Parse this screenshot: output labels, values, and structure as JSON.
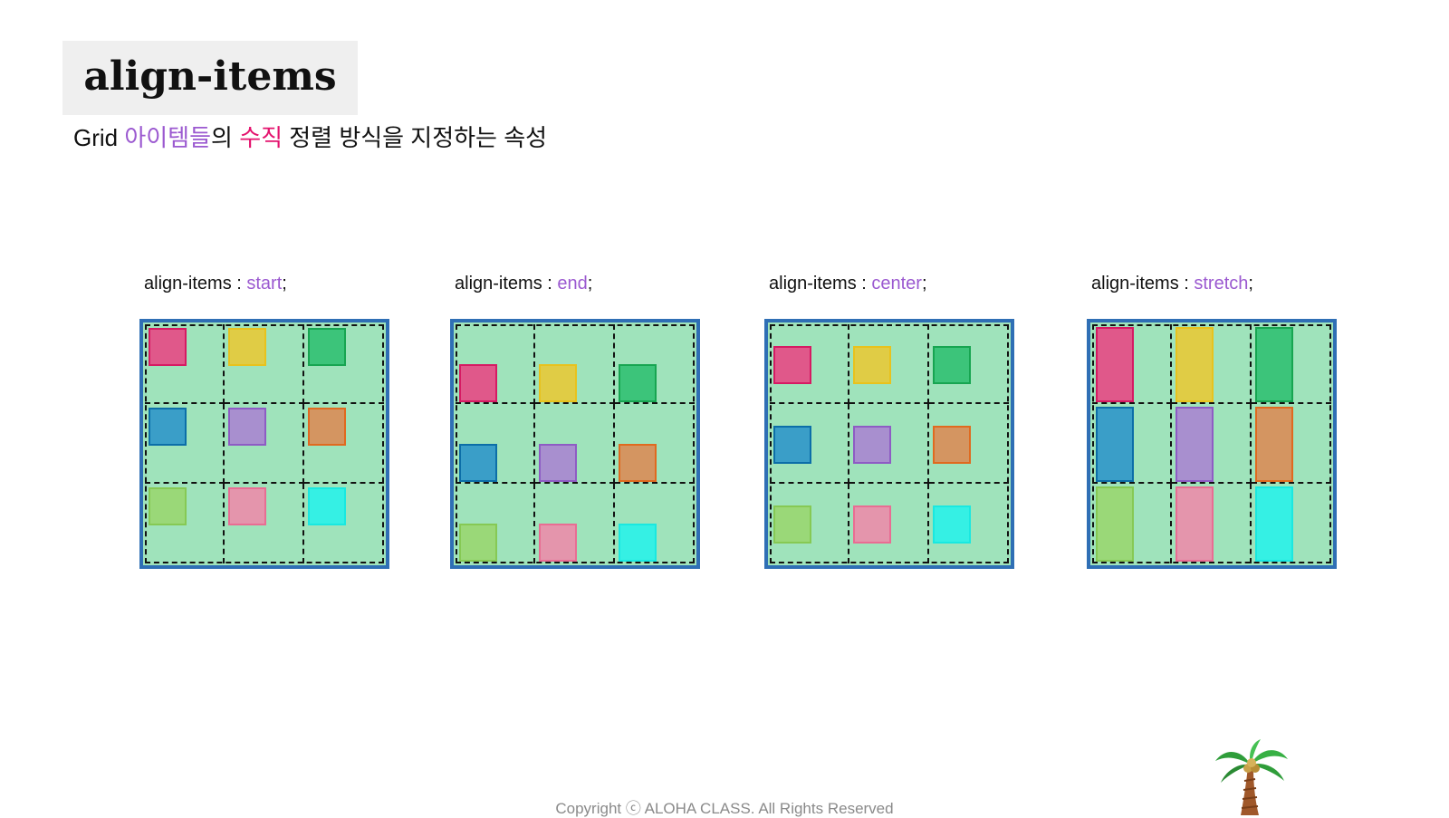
{
  "title": "align-items",
  "subtitle": {
    "prefix": "Grid ",
    "highlight1": "아이템들",
    "middle": "의 ",
    "highlight2": "수직",
    "suffix": " 정렬 방식을 지정하는 속성"
  },
  "examples": [
    {
      "property": "align-items",
      "separator": " : ",
      "value": "start",
      "end": ";",
      "alignment": "start"
    },
    {
      "property": "align-items",
      "separator": " : ",
      "value": "end",
      "end": ";",
      "alignment": "end"
    },
    {
      "property": "align-items",
      "separator": " : ",
      "value": "center",
      "end": ";",
      "alignment": "center"
    },
    {
      "property": "align-items",
      "separator": " : ",
      "value": "stretch",
      "end": ";",
      "alignment": "stretch"
    }
  ],
  "item_colors": [
    {
      "fill": "#e0588a",
      "border": "#d61a63"
    },
    {
      "fill": "#e0cc45",
      "border": "#e8c21d"
    },
    {
      "fill": "#3cc47a",
      "border": "#17a551"
    },
    {
      "fill": "#3a9ec8",
      "border": "#0c6ea8"
    },
    {
      "fill": "#a88fcf",
      "border": "#8e5cc4"
    },
    {
      "fill": "#d49561",
      "border": "#e06a1f"
    },
    {
      "fill": "#9ad878",
      "border": "#86c954"
    },
    {
      "fill": "#e495ac",
      "border": "#e96d93"
    },
    {
      "fill": "#35f0e4",
      "border": "#1ae8e0"
    }
  ],
  "colors": {
    "grid_background": "#9fe3bb",
    "grid_border": "#2f6fb5",
    "value_highlight": "#9b59d0",
    "keyword_highlight": "#e4136e"
  },
  "footer": "Copyright ⓒ ALOHA CLASS. All Rights Reserved",
  "decoration_icon": "palm-tree-icon"
}
